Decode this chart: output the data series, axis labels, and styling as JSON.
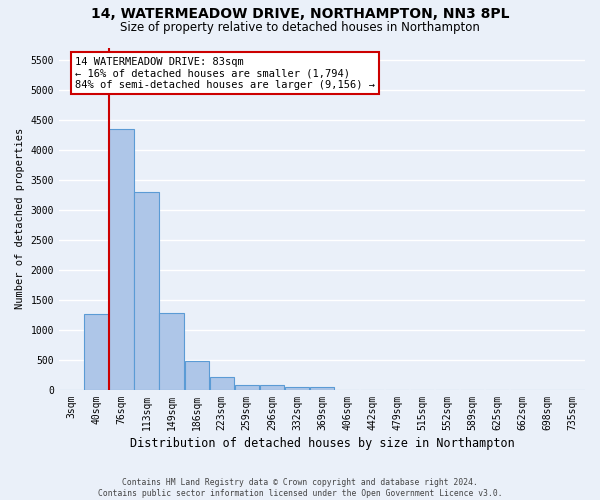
{
  "title_line1": "14, WATERMEADOW DRIVE, NORTHAMPTON, NN3 8PL",
  "title_line2": "Size of property relative to detached houses in Northampton",
  "xlabel": "Distribution of detached houses by size in Northampton",
  "ylabel": "Number of detached properties",
  "footer_line1": "Contains HM Land Registry data © Crown copyright and database right 2024.",
  "footer_line2": "Contains public sector information licensed under the Open Government Licence v3.0.",
  "categories": [
    "3sqm",
    "40sqm",
    "76sqm",
    "113sqm",
    "149sqm",
    "186sqm",
    "223sqm",
    "259sqm",
    "296sqm",
    "332sqm",
    "369sqm",
    "406sqm",
    "442sqm",
    "479sqm",
    "515sqm",
    "552sqm",
    "589sqm",
    "625sqm",
    "662sqm",
    "698sqm",
    "735sqm"
  ],
  "bar_values": [
    0,
    1260,
    4340,
    3300,
    1280,
    490,
    215,
    90,
    80,
    55,
    55,
    0,
    0,
    0,
    0,
    0,
    0,
    0,
    0,
    0,
    0
  ],
  "bar_color": "#aec6e8",
  "bar_edge_color": "#5b9bd5",
  "background_color": "#eaf0f9",
  "grid_color": "#ffffff",
  "ylim": [
    0,
    5700
  ],
  "yticks": [
    0,
    500,
    1000,
    1500,
    2000,
    2500,
    3000,
    3500,
    4000,
    4500,
    5000,
    5500
  ],
  "vline_color": "#cc0000",
  "annotation_text": "14 WATERMEADOW DRIVE: 83sqm\n← 16% of detached houses are smaller (1,794)\n84% of semi-detached houses are larger (9,156) →",
  "annotation_box_color": "#ffffff",
  "annotation_box_edge": "#cc0000",
  "annotation_xi": 2,
  "annotation_yi": 5550,
  "title1_fontsize": 10,
  "title2_fontsize": 8.5,
  "ylabel_fontsize": 7.5,
  "xlabel_fontsize": 8.5,
  "tick_fontsize": 7,
  "annot_fontsize": 7.5,
  "footer_fontsize": 5.8
}
